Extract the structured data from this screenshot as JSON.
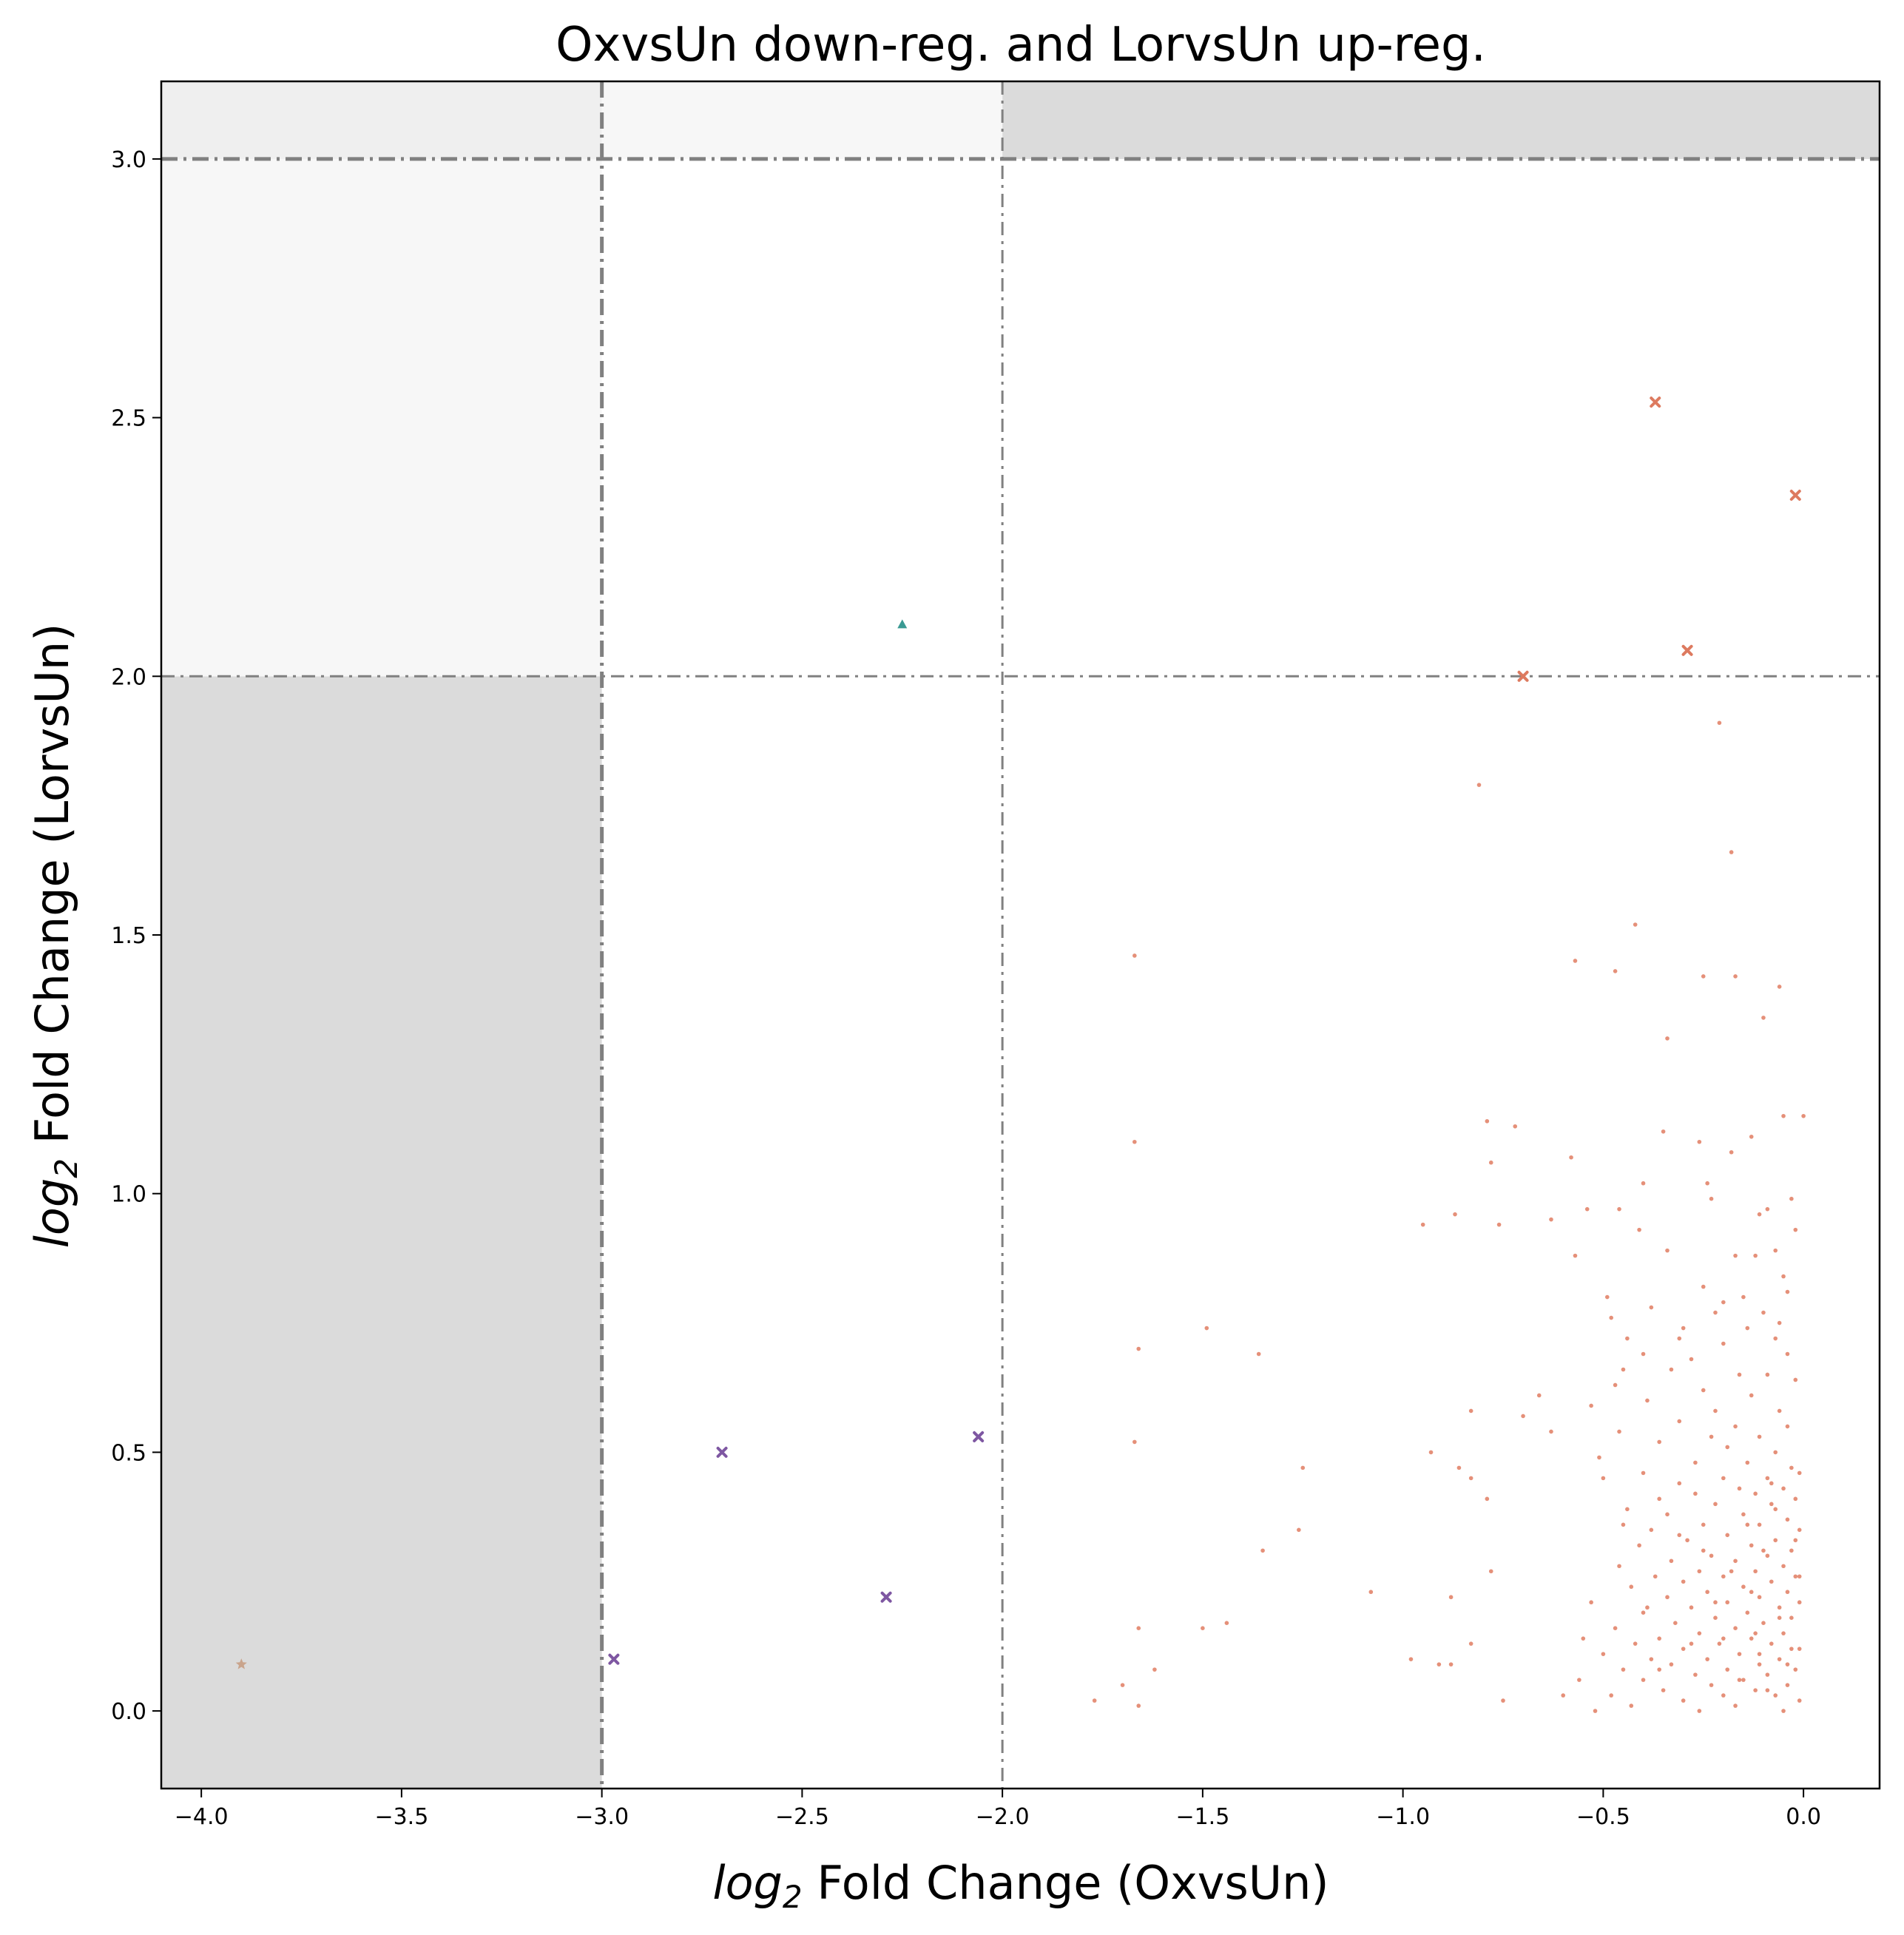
{
  "chart_data": {
    "type": "scatter",
    "title": "OxvsUn down-reg. and LorvsUn up-reg.",
    "xlabel": {
      "prefix": "log",
      "sub": "2",
      "rest": " Fold Change (OxvsUn)"
    },
    "ylabel": {
      "prefix": "log",
      "sub": "2",
      "rest": " Fold Change (LorvsUn)"
    },
    "xlim": [
      -4.1,
      0.19
    ],
    "ylim": [
      -0.15,
      3.15
    ],
    "xticks": [
      -4.0,
      -3.5,
      -3.0,
      -2.5,
      -2.0,
      -1.5,
      -1.0,
      -0.5,
      0.0
    ],
    "xtick_labels": [
      "−4.0",
      "−3.5",
      "−3.0",
      "−2.5",
      "−2.0",
      "−1.5",
      "−1.0",
      "−0.5",
      "0.0"
    ],
    "yticks": [
      0.0,
      0.5,
      1.0,
      1.5,
      2.0,
      2.5,
      3.0
    ],
    "ytick_labels": [
      "0.0",
      "0.5",
      "1.0",
      "1.5",
      "2.0",
      "2.5",
      "3.0"
    ],
    "grid": false,
    "legend": false,
    "regions": [
      {
        "x": [
          -4.1,
          -3.0
        ],
        "y": [
          -0.15,
          2.0
        ],
        "color": "#dbdbdb"
      },
      {
        "x": [
          -4.1,
          -3.0
        ],
        "y": [
          2.0,
          3.0
        ],
        "color": "#f7f7f7"
      },
      {
        "x": [
          -4.1,
          -3.0
        ],
        "y": [
          3.0,
          3.15
        ],
        "color": "#efefef"
      },
      {
        "x": [
          -3.0,
          -2.0
        ],
        "y": [
          3.0,
          3.15
        ],
        "color": "#f7f7f7"
      },
      {
        "x": [
          -2.0,
          0.19
        ],
        "y": [
          3.0,
          3.15
        ],
        "color": "#dbdbdb"
      }
    ],
    "threshold_lines": [
      {
        "orientation": "vertical",
        "value": -3.0,
        "weight": "thick"
      },
      {
        "orientation": "vertical",
        "value": -2.0,
        "weight": "thin"
      },
      {
        "orientation": "horizontal",
        "value": 2.0,
        "weight": "thin"
      },
      {
        "orientation": "horizontal",
        "value": 3.0,
        "weight": "thick"
      }
    ],
    "line_color": "#808080",
    "series": [
      {
        "marker": "x",
        "color": "#dd7a5f",
        "points": [
          [
            -0.37,
            2.53
          ],
          [
            -0.02,
            2.35
          ],
          [
            -0.29,
            2.05
          ],
          [
            -0.7,
            2.0
          ]
        ]
      },
      {
        "marker": "triangle",
        "color": "#3a9a93",
        "points": [
          [
            -2.25,
            2.1
          ]
        ]
      },
      {
        "marker": "x",
        "color": "#7e57a2",
        "points": [
          [
            -2.06,
            0.53
          ],
          [
            -2.7,
            0.5
          ],
          [
            -2.29,
            0.22
          ],
          [
            -2.97,
            0.1
          ]
        ]
      },
      {
        "marker": "star",
        "color": "#c9a48c",
        "points": [
          [
            -3.9,
            0.09
          ]
        ]
      },
      {
        "marker": "dot",
        "color": "#e07d62",
        "points": [
          [
            -0.21,
            1.91
          ],
          [
            -0.81,
            1.79
          ],
          [
            -0.18,
            1.66
          ],
          [
            -1.67,
            1.46
          ],
          [
            -0.42,
            1.52
          ],
          [
            -0.57,
            1.45
          ],
          [
            -0.47,
            1.43
          ],
          [
            -0.25,
            1.42
          ],
          [
            -0.17,
            1.42
          ],
          [
            -0.06,
            1.4
          ],
          [
            -0.1,
            1.34
          ],
          [
            -0.34,
            1.3
          ],
          [
            -0.79,
            1.14
          ],
          [
            -0.72,
            1.13
          ],
          [
            -0.05,
            1.15
          ],
          [
            0.0,
            1.15
          ],
          [
            -0.13,
            1.11
          ],
          [
            -0.26,
            1.1
          ],
          [
            -0.35,
            1.12
          ],
          [
            -1.67,
            1.1
          ],
          [
            -0.58,
            1.07
          ],
          [
            -0.78,
            1.06
          ],
          [
            -0.18,
            1.08
          ],
          [
            -0.4,
            1.02
          ],
          [
            -0.24,
            1.02
          ],
          [
            -0.23,
            0.99
          ],
          [
            -0.03,
            0.99
          ],
          [
            -0.46,
            0.97
          ],
          [
            -0.54,
            0.97
          ],
          [
            -0.09,
            0.97
          ],
          [
            -0.11,
            0.96
          ],
          [
            -0.63,
            0.95
          ],
          [
            -0.87,
            0.96
          ],
          [
            -0.95,
            0.94
          ],
          [
            -0.76,
            0.94
          ],
          [
            -0.41,
            0.93
          ],
          [
            -0.02,
            0.93
          ],
          [
            -0.57,
            0.88
          ],
          [
            -0.34,
            0.89
          ],
          [
            -0.17,
            0.88
          ],
          [
            -0.12,
            0.88
          ],
          [
            -0.07,
            0.89
          ],
          [
            -0.05,
            0.84
          ],
          [
            -0.25,
            0.82
          ],
          [
            -0.15,
            0.8
          ],
          [
            -0.04,
            0.81
          ],
          [
            -0.49,
            0.8
          ],
          [
            -0.38,
            0.78
          ],
          [
            -0.2,
            0.79
          ],
          [
            -0.22,
            0.77
          ],
          [
            -0.1,
            0.77
          ],
          [
            -0.06,
            0.75
          ],
          [
            -0.14,
            0.74
          ],
          [
            -0.3,
            0.74
          ],
          [
            -0.48,
            0.76
          ],
          [
            -1.49,
            0.74
          ],
          [
            -0.44,
            0.72
          ],
          [
            -0.31,
            0.72
          ],
          [
            -0.07,
            0.72
          ],
          [
            -0.2,
            0.71
          ],
          [
            -1.66,
            0.7
          ],
          [
            -0.4,
            0.69
          ],
          [
            -0.28,
            0.68
          ],
          [
            -0.04,
            0.69
          ],
          [
            -1.36,
            0.69
          ],
          [
            -0.45,
            0.66
          ],
          [
            -0.33,
            0.66
          ],
          [
            -0.16,
            0.65
          ],
          [
            -0.09,
            0.65
          ],
          [
            -0.02,
            0.64
          ],
          [
            -0.47,
            0.63
          ],
          [
            -0.25,
            0.62
          ],
          [
            -0.13,
            0.61
          ],
          [
            -0.66,
            0.61
          ],
          [
            -0.39,
            0.6
          ],
          [
            -0.53,
            0.59
          ],
          [
            -0.22,
            0.58
          ],
          [
            -0.06,
            0.58
          ],
          [
            -0.83,
            0.58
          ],
          [
            -0.7,
            0.57
          ],
          [
            -0.31,
            0.56
          ],
          [
            -0.17,
            0.55
          ],
          [
            -0.04,
            0.55
          ],
          [
            -0.46,
            0.54
          ],
          [
            -0.63,
            0.54
          ],
          [
            -0.23,
            0.53
          ],
          [
            -0.11,
            0.53
          ],
          [
            -0.36,
            0.52
          ],
          [
            -1.67,
            0.52
          ],
          [
            -0.19,
            0.51
          ],
          [
            -0.07,
            0.5
          ],
          [
            -0.93,
            0.5
          ],
          [
            -0.51,
            0.49
          ],
          [
            -0.27,
            0.48
          ],
          [
            -0.14,
            0.48
          ],
          [
            -0.03,
            0.47
          ],
          [
            -1.25,
            0.47
          ],
          [
            -0.86,
            0.47
          ],
          [
            -0.4,
            0.46
          ],
          [
            -0.2,
            0.45
          ],
          [
            -0.09,
            0.45
          ],
          [
            -0.83,
            0.45
          ],
          [
            -0.5,
            0.45
          ],
          [
            -0.01,
            0.46
          ],
          [
            -0.31,
            0.44
          ],
          [
            -0.16,
            0.43
          ],
          [
            -0.05,
            0.43
          ],
          [
            -0.27,
            0.42
          ],
          [
            -0.12,
            0.42
          ],
          [
            -0.36,
            0.41
          ],
          [
            -0.02,
            0.41
          ],
          [
            -0.79,
            0.41
          ],
          [
            -0.22,
            0.4
          ],
          [
            -0.08,
            0.4
          ],
          [
            -0.44,
            0.39
          ],
          [
            -0.34,
            0.38
          ],
          [
            -0.15,
            0.38
          ],
          [
            -0.04,
            0.37
          ],
          [
            -0.25,
            0.36
          ],
          [
            -0.11,
            0.36
          ],
          [
            -0.38,
            0.35
          ],
          [
            -0.01,
            0.35
          ],
          [
            -0.19,
            0.34
          ],
          [
            -1.26,
            0.35
          ],
          [
            -0.29,
            0.33
          ],
          [
            -0.07,
            0.33
          ],
          [
            -0.41,
            0.32
          ],
          [
            -0.13,
            0.32
          ],
          [
            -0.03,
            0.31
          ],
          [
            -1.35,
            0.31
          ],
          [
            -0.23,
            0.3
          ],
          [
            -0.09,
            0.3
          ],
          [
            -0.33,
            0.29
          ],
          [
            -0.17,
            0.29
          ],
          [
            -0.46,
            0.28
          ],
          [
            -0.05,
            0.28
          ],
          [
            -0.26,
            0.27
          ],
          [
            -0.12,
            0.27
          ],
          [
            -0.78,
            0.27
          ],
          [
            -0.37,
            0.26
          ],
          [
            -0.2,
            0.26
          ],
          [
            -0.02,
            0.26
          ],
          [
            -0.3,
            0.25
          ],
          [
            -0.08,
            0.25
          ],
          [
            -0.15,
            0.24
          ],
          [
            -0.43,
            0.24
          ],
          [
            -0.04,
            0.23
          ],
          [
            -0.24,
            0.23
          ],
          [
            -1.08,
            0.23
          ],
          [
            -0.34,
            0.22
          ],
          [
            -0.11,
            0.22
          ],
          [
            -0.88,
            0.22
          ],
          [
            -0.19,
            0.21
          ],
          [
            -0.01,
            0.21
          ],
          [
            -0.28,
            0.2
          ],
          [
            -0.53,
            0.21
          ],
          [
            -0.06,
            0.2
          ],
          [
            -0.4,
            0.19
          ],
          [
            -0.14,
            0.19
          ],
          [
            -0.22,
            0.18
          ],
          [
            -0.03,
            0.18
          ],
          [
            -0.32,
            0.17
          ],
          [
            -1.44,
            0.17
          ],
          [
            -0.1,
            0.17
          ],
          [
            -0.47,
            0.16
          ],
          [
            -0.17,
            0.16
          ],
          [
            -1.66,
            0.16
          ],
          [
            -1.5,
            0.16
          ],
          [
            -0.26,
            0.15
          ],
          [
            -0.05,
            0.15
          ],
          [
            -0.36,
            0.14
          ],
          [
            -0.13,
            0.14
          ],
          [
            -0.42,
            0.13
          ],
          [
            -0.21,
            0.13
          ],
          [
            -0.08,
            0.13
          ],
          [
            -0.83,
            0.13
          ],
          [
            -0.3,
            0.12
          ],
          [
            -0.01,
            0.12
          ],
          [
            -0.16,
            0.11
          ],
          [
            -0.5,
            0.11
          ],
          [
            -0.38,
            0.1
          ],
          [
            -0.24,
            0.1
          ],
          [
            -0.06,
            0.1
          ],
          [
            -0.98,
            0.1
          ],
          [
            -0.33,
            0.09
          ],
          [
            -0.11,
            0.09
          ],
          [
            -0.45,
            0.08
          ],
          [
            -0.19,
            0.08
          ],
          [
            -0.02,
            0.08
          ],
          [
            -0.91,
            0.09
          ],
          [
            -0.88,
            0.09
          ],
          [
            -0.27,
            0.07
          ],
          [
            -0.09,
            0.07
          ],
          [
            -1.62,
            0.08
          ],
          [
            -0.4,
            0.06
          ],
          [
            -0.15,
            0.06
          ],
          [
            -0.56,
            0.06
          ],
          [
            -0.04,
            0.05
          ],
          [
            -0.23,
            0.05
          ],
          [
            -1.7,
            0.05
          ],
          [
            -0.35,
            0.04
          ],
          [
            -0.12,
            0.04
          ],
          [
            -0.48,
            0.03
          ],
          [
            -0.2,
            0.03
          ],
          [
            -0.07,
            0.03
          ],
          [
            -1.77,
            0.02
          ],
          [
            -0.3,
            0.02
          ],
          [
            -0.01,
            0.02
          ],
          [
            -0.43,
            0.01
          ],
          [
            -0.17,
            0.01
          ],
          [
            -0.52,
            0.0
          ],
          [
            -0.26,
            0.0
          ],
          [
            -0.05,
            0.0
          ],
          [
            -1.66,
            0.01
          ],
          [
            -0.75,
            0.02
          ],
          [
            -0.6,
            0.03
          ],
          [
            -0.14,
            0.36
          ],
          [
            -0.1,
            0.31
          ],
          [
            -0.18,
            0.27
          ],
          [
            -0.22,
            0.21
          ],
          [
            -0.06,
            0.18
          ],
          [
            -0.12,
            0.15
          ],
          [
            -0.28,
            0.13
          ],
          [
            -0.03,
            0.12
          ],
          [
            -0.16,
            0.06
          ],
          [
            -0.09,
            0.04
          ],
          [
            -0.31,
            0.34
          ],
          [
            -0.07,
            0.39
          ],
          [
            -0.25,
            0.31
          ],
          [
            -0.13,
            0.23
          ],
          [
            -0.04,
            0.09
          ],
          [
            -0.2,
            0.14
          ],
          [
            -0.36,
            0.08
          ],
          [
            -0.11,
            0.11
          ],
          [
            -0.02,
            0.33
          ],
          [
            -0.45,
            0.36
          ],
          [
            -0.55,
            0.14
          ],
          [
            -0.39,
            0.2
          ],
          [
            -0.01,
            0.26
          ],
          [
            -0.08,
            0.44
          ]
        ]
      }
    ]
  }
}
